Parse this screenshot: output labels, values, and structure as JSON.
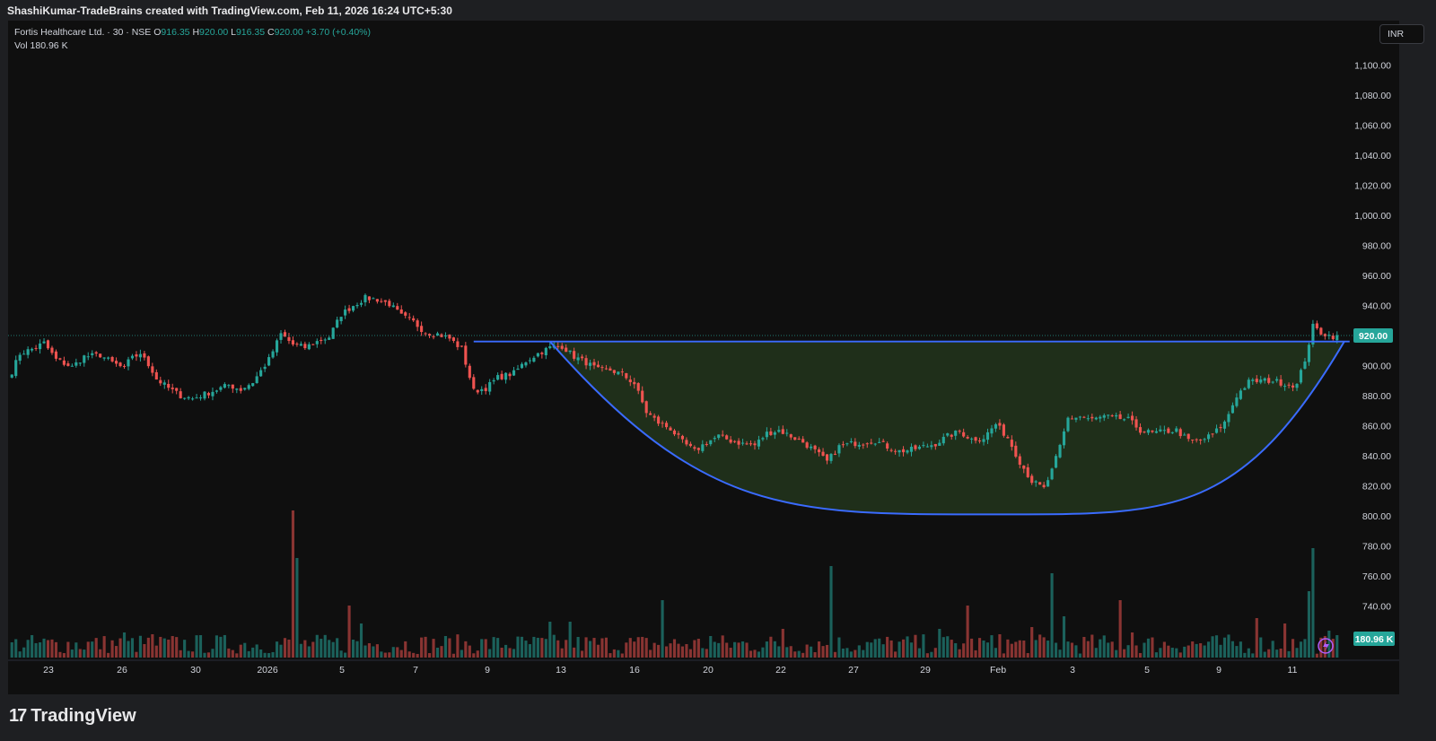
{
  "attribution": "ShashiKumar-TradeBrains created with TradingView.com, Feb 11, 2026 16:24 UTC+5:30",
  "legend": {
    "symbol": "Fortis Healthcare Ltd. · 30 · NSE",
    "open_label": "O",
    "open": "916.35",
    "high_label": "H",
    "high": "920.00",
    "low_label": "L",
    "low": "916.35",
    "close_label": "C",
    "close": "920.00",
    "change": "+3.70 (+0.40%)",
    "volume_label": "Vol",
    "volume": "180.96 K"
  },
  "currency": "INR",
  "footer_logo_text": "TradingView",
  "chart_data": {
    "type": "candlestick",
    "ylim": [
      720,
      1110
    ],
    "y_ticks": [
      "1,100.00",
      "1,080.00",
      "1,060.00",
      "1,040.00",
      "1,020.00",
      "1,000.00",
      "980.00",
      "960.00",
      "940.00",
      "920.00",
      "900.00",
      "880.00",
      "860.00",
      "840.00",
      "820.00",
      "800.00",
      "780.00",
      "760.00",
      "740.00"
    ],
    "x_ticks": [
      "23",
      "26",
      "30",
      "2026",
      "5",
      "7",
      "9",
      "13",
      "16",
      "20",
      "22",
      "27",
      "29",
      "Feb",
      "3",
      "5",
      "9",
      "11"
    ],
    "last_price": "920.00",
    "last_volume": "180.96 K",
    "price_anchors": [
      [
        0,
        896
      ],
      [
        2,
        908
      ],
      [
        5,
        911
      ],
      [
        8,
        915
      ],
      [
        11,
        904
      ],
      [
        15,
        899
      ],
      [
        18,
        906
      ],
      [
        22,
        907
      ],
      [
        25,
        902
      ],
      [
        28,
        898
      ],
      [
        30,
        907
      ],
      [
        33,
        906
      ],
      [
        36,
        891
      ],
      [
        39,
        885
      ],
      [
        42,
        880
      ],
      [
        45,
        878
      ],
      [
        48,
        881
      ],
      [
        51,
        884
      ],
      [
        54,
        887
      ],
      [
        57,
        884
      ],
      [
        60,
        889
      ],
      [
        64,
        904
      ],
      [
        67,
        921
      ],
      [
        70,
        914
      ],
      [
        73,
        912
      ],
      [
        76,
        916
      ],
      [
        79,
        919
      ],
      [
        82,
        934
      ],
      [
        85,
        940
      ],
      [
        88,
        945
      ],
      [
        91,
        944
      ],
      [
        94,
        941
      ],
      [
        97,
        933
      ],
      [
        100,
        929
      ],
      [
        103,
        922
      ],
      [
        106,
        921
      ],
      [
        109,
        918
      ],
      [
        112,
        911
      ],
      [
        115,
        883
      ],
      [
        118,
        885
      ],
      [
        121,
        892
      ],
      [
        125,
        895
      ],
      [
        128,
        903
      ],
      [
        131,
        908
      ],
      [
        134,
        912
      ],
      [
        137,
        913
      ],
      [
        140,
        906
      ],
      [
        143,
        902
      ],
      [
        146,
        897
      ],
      [
        149,
        897
      ],
      [
        152,
        894
      ],
      [
        155,
        888
      ],
      [
        158,
        869
      ],
      [
        161,
        862
      ],
      [
        164,
        858
      ],
      [
        167,
        849
      ],
      [
        170,
        843
      ],
      [
        173,
        849
      ],
      [
        176,
        853
      ],
      [
        179,
        850
      ],
      [
        182,
        848
      ],
      [
        185,
        847
      ],
      [
        188,
        855
      ],
      [
        191,
        857
      ],
      [
        194,
        853
      ],
      [
        197,
        849
      ],
      [
        200,
        843
      ],
      [
        203,
        836
      ],
      [
        206,
        846
      ],
      [
        209,
        848
      ],
      [
        212,
        849
      ],
      [
        215,
        850
      ],
      [
        218,
        846
      ],
      [
        221,
        843
      ],
      [
        224,
        844
      ],
      [
        227,
        846
      ],
      [
        230,
        848
      ],
      [
        233,
        853
      ],
      [
        236,
        856
      ],
      [
        239,
        851
      ],
      [
        242,
        852
      ],
      [
        245,
        861
      ],
      [
        248,
        852
      ],
      [
        251,
        836
      ],
      [
        254,
        823
      ],
      [
        257,
        818
      ],
      [
        259,
        830
      ],
      [
        261,
        846
      ],
      [
        263,
        865
      ],
      [
        266,
        866
      ],
      [
        269,
        864
      ],
      [
        272,
        866
      ],
      [
        275,
        865
      ],
      [
        278,
        864
      ],
      [
        281,
        857
      ],
      [
        284,
        855
      ],
      [
        287,
        856
      ],
      [
        290,
        857
      ],
      [
        293,
        850
      ],
      [
        296,
        850
      ],
      [
        299,
        854
      ],
      [
        302,
        862
      ],
      [
        305,
        880
      ],
      [
        308,
        889
      ],
      [
        311,
        890
      ],
      [
        314,
        890
      ],
      [
        317,
        888
      ],
      [
        320,
        887
      ],
      [
        322,
        904
      ],
      [
        324,
        926
      ],
      [
        326,
        922
      ],
      [
        328,
        920
      ],
      [
        330,
        919
      ]
    ],
    "volume_spikes": [
      [
        70,
        164
      ],
      [
        71,
        111
      ],
      [
        28,
        28
      ],
      [
        35,
        26
      ],
      [
        84,
        58
      ],
      [
        87,
        38
      ],
      [
        134,
        40
      ],
      [
        139,
        40
      ],
      [
        162,
        64
      ],
      [
        174,
        24
      ],
      [
        192,
        32
      ],
      [
        204,
        102
      ],
      [
        231,
        32
      ],
      [
        238,
        58
      ],
      [
        259,
        94
      ],
      [
        276,
        64
      ],
      [
        310,
        44
      ],
      [
        317,
        38
      ],
      [
        323,
        74
      ],
      [
        324,
        122
      ],
      [
        328,
        30
      ],
      [
        262,
        46
      ],
      [
        279,
        28
      ],
      [
        254,
        34
      ],
      [
        246,
        26
      ]
    ],
    "annotations": [
      {
        "type": "horizontal-resistance",
        "from_price": 916,
        "to_price": 916,
        "from_bar": 115,
        "to_bar": 330
      },
      {
        "type": "cup-curve",
        "start_bar": 134,
        "start_price": 916,
        "bottom_bar": 245,
        "bottom_price": 801,
        "end_bar": 330,
        "end_price": 916
      }
    ],
    "colors": {
      "up": "#26a69a",
      "down": "#ef5350",
      "cup_line": "#3a6bff",
      "cup_fill": "#2e4a24",
      "background": "#0f0f0f",
      "price_badge": "#26a69a"
    }
  }
}
